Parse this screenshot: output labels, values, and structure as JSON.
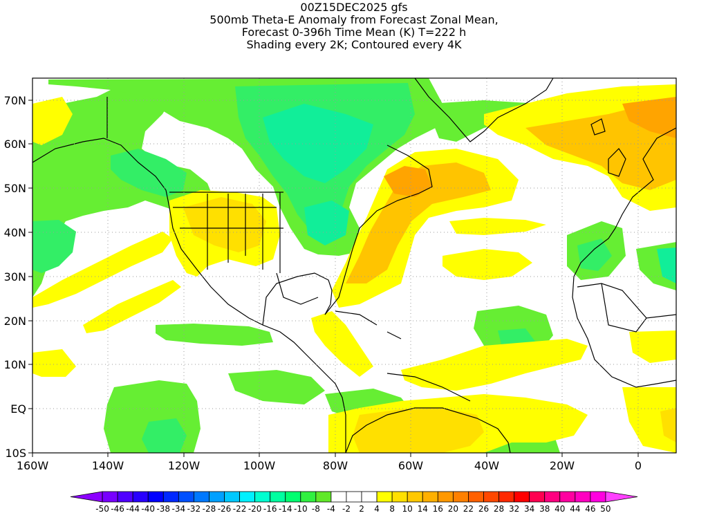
{
  "title": {
    "line1": "00Z15DEC2025 gfs",
    "line2": "500mb Theta-E Anomaly from Forecast Zonal Mean,",
    "line3": "Forecast 0-396h Time Mean (K) T=222 h",
    "line4": "Shading every 2K; Contoured every 4K"
  },
  "map": {
    "projection": "lat-lon",
    "lon_range": [
      -160,
      10
    ],
    "lat_range": [
      -10,
      75
    ],
    "grid": "dotted",
    "x_ticks": [
      "160W",
      "140W",
      "120W",
      "100W",
      "80W",
      "60W",
      "40W",
      "20W",
      "0"
    ],
    "y_ticks": [
      "70N",
      "60N",
      "50N",
      "40N",
      "30N",
      "20N",
      "10N",
      "EQ",
      "10S"
    ]
  },
  "colorbar": {
    "labels": [
      "-50",
      "-46",
      "-44",
      "-40",
      "-38",
      "-34",
      "-32",
      "-28",
      "-26",
      "-22",
      "-20",
      "-16",
      "-14",
      "-10",
      "-8",
      "-4",
      "-2",
      "2",
      "4",
      "8",
      "10",
      "14",
      "16",
      "20",
      "22",
      "26",
      "28",
      "32",
      "34",
      "38",
      "40",
      "44",
      "46",
      "50"
    ],
    "colors": [
      "#8c00ff",
      "#7800ff",
      "#5000ff",
      "#2800ff",
      "#0000ff",
      "#0028ff",
      "#0050ff",
      "#0078ff",
      "#00a0ff",
      "#00c8ff",
      "#00f0ff",
      "#00ffd0",
      "#00ffa0",
      "#00ff70",
      "#30f040",
      "#60e828",
      "#ffffff",
      "#ffffff",
      "#ffffff",
      "#ffff00",
      "#ffe000",
      "#ffc800",
      "#ffb000",
      "#ff9800",
      "#ff8000",
      "#ff6000",
      "#ff4800",
      "#ff2800",
      "#ff0000",
      "#ff0050",
      "#ff0080",
      "#ff00a0",
      "#ff00c0",
      "#ff00e0",
      "#ff40ff"
    ]
  },
  "colors": {
    "green_light": "#66ee33",
    "green_mid": "#33ee66",
    "green_deep": "#11ee99",
    "yellow": "#ffff00",
    "yellow_orange": "#ffe000",
    "orange_light": "#ffc400",
    "orange": "#ffa400"
  }
}
